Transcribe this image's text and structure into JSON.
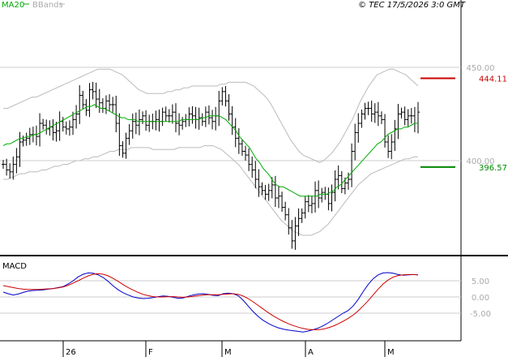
{
  "header": {
    "legend_ma": "MA20",
    "legend_bb": "BBands",
    "copyright": "© TEC 17/5/2026 3:0 GMT"
  },
  "colors": {
    "price_bars": "#000000",
    "ma20": "#00aa00",
    "bbands": "#bbbbbb",
    "resistance": "#cc0000",
    "support": "#008800",
    "macd": "#0000cc",
    "signal": "#cc0000",
    "axis_labels": "#aaaaaa"
  },
  "chart_data": [
    {
      "type": "ohlc",
      "y_axis_ticks": [
        {
          "value": 450.0,
          "label": "450.00"
        },
        {
          "value": 400.0,
          "label": "400.00"
        }
      ],
      "ylim": [
        350,
        480
      ],
      "x_tick_labels": [
        "26",
        "F",
        "M",
        "A",
        "M"
      ],
      "levels": [
        {
          "name": "resistance",
          "value": 444.11,
          "label": "444.11"
        },
        {
          "name": "support",
          "value": 396.57,
          "label": "396.57"
        }
      ],
      "price_close": [
        398,
        395,
        394,
        398,
        402,
        410,
        411,
        412,
        414,
        414,
        413,
        420,
        419,
        417,
        418,
        415,
        416,
        421,
        418,
        417,
        418,
        422,
        425,
        435,
        430,
        427,
        438,
        437,
        433,
        431,
        428,
        432,
        430,
        430,
        420,
        408,
        404,
        412,
        416,
        421,
        419,
        422,
        424,
        419,
        421,
        421,
        422,
        421,
        426,
        424,
        424,
        426,
        420,
        419,
        421,
        422,
        425,
        424,
        422,
        423,
        421,
        426,
        423,
        421,
        424,
        432,
        437,
        432,
        425,
        418,
        412,
        409,
        405,
        403,
        398,
        395,
        390,
        386,
        384,
        382,
        384,
        387,
        380,
        381,
        375,
        371,
        364,
        357,
        365,
        369,
        372,
        378,
        376,
        377,
        384,
        380,
        383,
        382,
        377,
        383,
        390,
        392,
        385,
        388,
        390,
        405,
        415,
        420,
        425,
        428,
        428,
        425,
        426,
        424,
        422,
        410,
        405,
        410,
        417,
        425,
        426,
        422,
        424,
        424,
        420,
        426
      ],
      "ma20": [
        408,
        409,
        409,
        410,
        411,
        412,
        412,
        413,
        413,
        414,
        414,
        415,
        416,
        417,
        418,
        419,
        420,
        421,
        422,
        423,
        424,
        425,
        426,
        427,
        428,
        429,
        429,
        430,
        429,
        428,
        428,
        427,
        426,
        425,
        424,
        423,
        423,
        422,
        422,
        422,
        421,
        421,
        421,
        421,
        421,
        421,
        421,
        421,
        421,
        421,
        421,
        421,
        421,
        422,
        422,
        422,
        422,
        422,
        422,
        423,
        423,
        424,
        424,
        424,
        424,
        423,
        422,
        420,
        418,
        416,
        413,
        411,
        409,
        407,
        404,
        401,
        399,
        396,
        394,
        392,
        389,
        387,
        386,
        386,
        385,
        384,
        383,
        382,
        381,
        381,
        381,
        381,
        381,
        381,
        382,
        382,
        382,
        383,
        384,
        386,
        387,
        389,
        391,
        393,
        395,
        397,
        399,
        401,
        403,
        405,
        407,
        409,
        410,
        412,
        414,
        415,
        416,
        417,
        417,
        418,
        418,
        419,
        420,
        420
      ],
      "bb_upper": [
        428,
        428,
        429,
        430,
        431,
        432,
        433,
        434,
        434,
        435,
        436,
        437,
        438,
        439,
        440,
        441,
        442,
        443,
        444,
        445,
        446,
        447,
        448,
        449,
        449,
        449,
        449,
        448,
        447,
        446,
        444,
        442,
        440,
        438,
        437,
        436,
        436,
        436,
        436,
        436,
        437,
        437,
        438,
        438,
        439,
        439,
        440,
        440,
        440,
        440,
        440,
        440,
        440,
        441,
        441,
        442,
        442,
        442,
        442,
        442,
        441,
        440,
        438,
        436,
        434,
        431,
        427,
        423,
        419,
        415,
        411,
        408,
        405,
        403,
        402,
        401,
        400,
        399,
        400,
        402,
        404,
        407,
        410,
        414,
        418,
        422,
        427,
        432,
        436,
        440,
        443,
        446,
        447,
        448,
        449,
        449,
        448,
        447,
        446,
        444,
        442,
        440
      ],
      "bb_lower": [
        390,
        390,
        391,
        392,
        393,
        393,
        394,
        394,
        394,
        395,
        395,
        396,
        397,
        397,
        398,
        398,
        399,
        400,
        400,
        401,
        401,
        402,
        402,
        403,
        404,
        405,
        405,
        406,
        406,
        406,
        407,
        407,
        407,
        407,
        407,
        406,
        406,
        406,
        406,
        406,
        406,
        407,
        407,
        407,
        407,
        407,
        407,
        408,
        408,
        408,
        407,
        406,
        404,
        402,
        400,
        398,
        395,
        392,
        389,
        386,
        383,
        380,
        377,
        374,
        371,
        368,
        366,
        364,
        362,
        361,
        360,
        360,
        360,
        361,
        362,
        364,
        366,
        369,
        372,
        375,
        378,
        381,
        384,
        387,
        389,
        391,
        393,
        394,
        395,
        396,
        397,
        398,
        399,
        400,
        401,
        401,
        402,
        402
      ],
      "levels_note_free": ""
    },
    {
      "type": "line",
      "title": "MACD",
      "y_axis_ticks": [
        {
          "value": 5.0,
          "label": "5.00"
        },
        {
          "value": 0.0,
          "label": "0.00"
        },
        {
          "value": -5.0,
          "label": "-5.00"
        }
      ],
      "ylim": [
        -12,
        11
      ],
      "series": [
        {
          "key": "macd",
          "values": [
            1.5,
            1.0,
            0.6,
            0.9,
            1.4,
            1.8,
            2.0,
            2.1,
            2.2,
            2.4,
            2.6,
            2.9,
            3.2,
            4.0,
            5.0,
            6.2,
            7.0,
            7.4,
            7.3,
            6.8,
            6.0,
            4.8,
            3.4,
            2.2,
            1.3,
            0.6,
            0.0,
            -0.3,
            -0.5,
            -0.4,
            -0.2,
            0.1,
            0.3,
            0.2,
            -0.1,
            -0.4,
            -0.3,
            0.2,
            0.6,
            0.9,
            1.0,
            0.8,
            0.5,
            0.4,
            1.0,
            1.2,
            1.0,
            0.4,
            -1.0,
            -2.8,
            -4.5,
            -6.0,
            -7.2,
            -8.1,
            -8.9,
            -9.5,
            -9.9,
            -10.2,
            -10.4,
            -10.6,
            -10.8,
            -10.5,
            -10.1,
            -9.6,
            -8.9,
            -8.0,
            -7.0,
            -6.0,
            -5.0,
            -4.2,
            -2.8,
            -0.8,
            1.6,
            3.8,
            5.6,
            6.8,
            7.4,
            7.5,
            7.3,
            6.9,
            6.7,
            6.8,
            6.9,
            6.8
          ],
          "name": ""
        },
        {
          "key": "signal",
          "values": [
            3.5,
            3.2,
            2.9,
            2.6,
            2.4,
            2.3,
            2.3,
            2.3,
            2.4,
            2.5,
            2.6,
            2.8,
            3.1,
            3.6,
            4.3,
            5.0,
            5.8,
            6.5,
            7.0,
            7.2,
            7.0,
            6.5,
            5.7,
            4.8,
            3.8,
            2.9,
            2.1,
            1.4,
            0.8,
            0.4,
            0.1,
            0.0,
            0.0,
            0.1,
            0.1,
            0.0,
            -0.1,
            0.0,
            0.2,
            0.4,
            0.6,
            0.7,
            0.7,
            0.7,
            0.8,
            0.9,
            1.0,
            0.8,
            0.3,
            -0.5,
            -1.5,
            -2.6,
            -3.7,
            -4.8,
            -5.8,
            -6.7,
            -7.5,
            -8.2,
            -8.8,
            -9.3,
            -9.7,
            -10.0,
            -10.1,
            -10.1,
            -9.9,
            -9.5,
            -9.0,
            -8.3,
            -7.5,
            -6.6,
            -5.6,
            -4.3,
            -2.8,
            -1.2,
            0.6,
            2.4,
            4.0,
            5.2,
            6.1,
            6.6,
            6.8,
            6.9,
            6.9,
            6.8
          ],
          "name": ""
        }
      ]
    }
  ]
}
